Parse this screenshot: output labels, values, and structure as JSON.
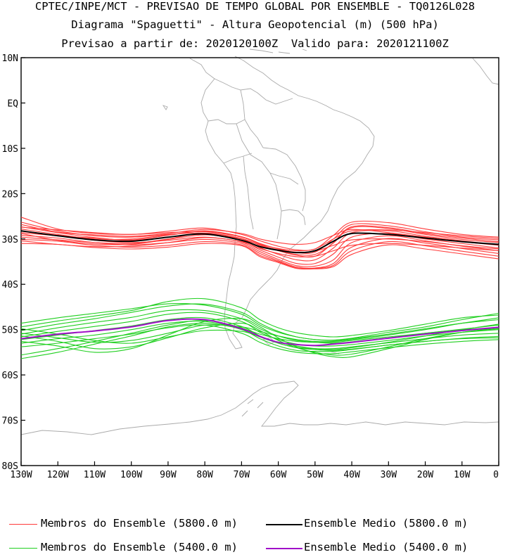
{
  "titles": {
    "line1": "CPTEC/INPE/MCT - PREVISAO DE TEMPO GLOBAL POR ENSEMBLE - TQ0126L028",
    "line2": "Diagrama \"Spaguetti\" - Altura Geopotencial (m) (500 hPa)",
    "line3": "Previsao a partir de: 2020120100Z  Valido para: 2020121100Z"
  },
  "axes": {
    "lat_labels": [
      "10N",
      "EQ",
      "10S",
      "20S",
      "30S",
      "40S",
      "50S",
      "60S",
      "70S",
      "80S"
    ],
    "lat_values": [
      10,
      0,
      -10,
      -20,
      -30,
      -40,
      -50,
      -60,
      -70,
      -80
    ],
    "lon_labels": [
      "130W",
      "120W",
      "110W",
      "100W",
      "90W",
      "80W",
      "70W",
      "60W",
      "50W",
      "40W",
      "30W",
      "20W",
      "10W",
      "0"
    ],
    "lon_values": [
      -130,
      -120,
      -110,
      -100,
      -90,
      -80,
      -70,
      -60,
      -50,
      -40,
      -30,
      -20,
      -10,
      0
    ]
  },
  "colors": {
    "member_5800": "#ff3b3b",
    "mean_5800": "#000000",
    "member_5400": "#1fcf1f",
    "mean_5400": "#a010c8",
    "coast": "#aaaaaa"
  },
  "legend": {
    "members_5800": "Membros do Ensemble (5800.0 m)",
    "mean_5800": "Ensemble Medio (5800.0 m)",
    "members_5400": "Membros do Ensemble (5400.0 m)",
    "mean_5400": "Ensemble Medio (5400.0 m)"
  },
  "chart_data": {
    "type": "line",
    "x": [
      -130,
      -120,
      -110,
      -100,
      -90,
      -80,
      -70,
      -65,
      -60,
      -55,
      -50,
      -45,
      -40,
      -30,
      -20,
      -10,
      0
    ],
    "series": [
      {
        "name": "Ensemble Medio (5800.0 m)",
        "values": [
          -28.2,
          -29.3,
          -30.2,
          -30.5,
          -29.6,
          -28.9,
          -30.3,
          -31.7,
          -32.5,
          -33.0,
          -32.6,
          -30.5,
          -28.8,
          -29.0,
          -29.8,
          -30.6,
          -31.2
        ]
      },
      {
        "name": "Ensemble Medio (5400.0 m)",
        "values": [
          -52.0,
          -51.0,
          -50.3,
          -49.4,
          -48.0,
          -47.8,
          -49.8,
          -51.5,
          -52.8,
          -53.3,
          -53.5,
          -53.2,
          -52.8,
          -51.9,
          -51.0,
          -50.2,
          -49.5
        ]
      }
    ],
    "members_5800": [
      [
        -25.2,
        -27.8,
        -28.8,
        -29.0,
        -28.6,
        -28.4,
        -29.6,
        -31.2,
        -32.6,
        -33.6,
        -33.8,
        -30.8,
        -27.3,
        -27.5,
        -28.8,
        -29.8,
        -30.6
      ],
      [
        -26.3,
        -28.2,
        -29.3,
        -29.6,
        -29.0,
        -28.7,
        -30.0,
        -31.9,
        -33.4,
        -34.6,
        -34.6,
        -32.0,
        -28.6,
        -28.2,
        -29.4,
        -30.4,
        -31.3
      ],
      [
        -27.3,
        -28.6,
        -29.7,
        -30.3,
        -29.6,
        -29.0,
        -30.4,
        -32.4,
        -34.0,
        -35.4,
        -35.4,
        -33.3,
        -29.6,
        -28.8,
        -30.0,
        -31.0,
        -32.0
      ],
      [
        -28.2,
        -29.2,
        -30.3,
        -30.8,
        -30.3,
        -29.6,
        -30.7,
        -32.8,
        -34.5,
        -35.9,
        -36.0,
        -34.6,
        -30.8,
        -29.3,
        -30.4,
        -31.6,
        -32.6
      ],
      [
        -29.2,
        -29.8,
        -30.8,
        -31.3,
        -30.8,
        -30.1,
        -31.0,
        -33.2,
        -34.8,
        -36.2,
        -36.4,
        -35.4,
        -31.8,
        -29.9,
        -30.9,
        -32.1,
        -33.2
      ],
      [
        -30.1,
        -30.5,
        -31.4,
        -31.8,
        -31.4,
        -30.6,
        -31.3,
        -33.6,
        -35.0,
        -36.4,
        -36.5,
        -35.8,
        -32.6,
        -30.6,
        -31.5,
        -32.7,
        -33.8
      ],
      [
        -31.0,
        -31.2,
        -31.9,
        -32.2,
        -31.8,
        -31.0,
        -31.5,
        -33.9,
        -35.2,
        -36.5,
        -36.6,
        -36.1,
        -33.4,
        -31.3,
        -32.2,
        -33.3,
        -34.4
      ],
      [
        -27.4,
        -28.0,
        -28.6,
        -29.0,
        -28.3,
        -27.6,
        -29.0,
        -30.4,
        -31.6,
        -32.4,
        -32.2,
        -29.2,
        -26.3,
        -26.4,
        -27.8,
        -29.0,
        -29.6
      ],
      [
        -28.6,
        -29.3,
        -29.8,
        -30.2,
        -29.2,
        -28.2,
        -29.5,
        -31.0,
        -32.2,
        -33.0,
        -32.9,
        -30.0,
        -26.8,
        -27.1,
        -28.4,
        -29.6,
        -30.2
      ],
      [
        -29.6,
        -30.2,
        -30.8,
        -31.0,
        -30.0,
        -28.7,
        -29.9,
        -31.4,
        -32.6,
        -33.4,
        -33.4,
        -30.9,
        -27.5,
        -27.7,
        -29.0,
        -30.1,
        -30.8
      ],
      [
        -26.8,
        -28.5,
        -29.1,
        -29.4,
        -28.8,
        -27.9,
        -28.8,
        -30.0,
        -30.8,
        -31.2,
        -30.8,
        -29.2,
        -27.9,
        -28.6,
        -29.6,
        -30.6,
        -31.4
      ],
      [
        -28.8,
        -30.3,
        -31.1,
        -31.2,
        -30.1,
        -29.1,
        -30.0,
        -31.4,
        -32.4,
        -32.9,
        -32.7,
        -31.4,
        -30.2,
        -30.0,
        -30.6,
        -31.5,
        -32.2
      ],
      [
        -30.4,
        -31.2,
        -31.7,
        -31.6,
        -30.8,
        -29.7,
        -30.6,
        -32.1,
        -33.2,
        -33.9,
        -33.8,
        -32.6,
        -31.4,
        -31.0,
        -31.4,
        -32.0,
        -32.6
      ],
      [
        -27.8,
        -29.0,
        -30.0,
        -30.0,
        -29.1,
        -28.3,
        -29.5,
        -31.1,
        -32.1,
        -32.6,
        -32.2,
        -30.0,
        -28.2,
        -28.0,
        -28.6,
        -29.3,
        -29.9
      ]
    ],
    "members_5400": [
      [
        -48.6,
        -47.4,
        -46.4,
        -45.4,
        -44.3,
        -44.6,
        -46.6,
        -49.0,
        -50.6,
        -51.6,
        -52.2,
        -52.3,
        -51.9,
        -50.6,
        -49.4,
        -47.8,
        -46.4
      ],
      [
        -49.4,
        -48.1,
        -47.0,
        -45.8,
        -43.8,
        -43.2,
        -45.2,
        -47.8,
        -49.6,
        -50.7,
        -51.3,
        -51.6,
        -51.3,
        -50.2,
        -48.8,
        -47.4,
        -46.8
      ],
      [
        -50.2,
        -48.8,
        -47.6,
        -46.2,
        -44.8,
        -44.4,
        -46.2,
        -48.6,
        -50.4,
        -51.6,
        -52.2,
        -52.4,
        -52.0,
        -51.0,
        -49.8,
        -48.6,
        -47.8
      ],
      [
        -51.0,
        -49.6,
        -48.4,
        -47.3,
        -45.8,
        -45.8,
        -47.6,
        -49.8,
        -51.4,
        -52.4,
        -52.8,
        -53.0,
        -52.7,
        -51.8,
        -50.8,
        -49.9,
        -49.0
      ],
      [
        -51.6,
        -50.4,
        -49.3,
        -48.2,
        -46.6,
        -46.3,
        -48.2,
        -50.6,
        -52.2,
        -53.2,
        -53.6,
        -53.6,
        -53.3,
        -52.4,
        -51.4,
        -50.6,
        -50.0
      ],
      [
        -52.2,
        -51.2,
        -50.2,
        -49.2,
        -47.8,
        -47.4,
        -49.3,
        -51.4,
        -53.0,
        -53.9,
        -54.2,
        -54.2,
        -53.8,
        -52.9,
        -52.0,
        -51.2,
        -50.8
      ],
      [
        -53.0,
        -52.0,
        -51.2,
        -50.0,
        -48.6,
        -48.2,
        -50.0,
        -52.0,
        -53.6,
        -54.6,
        -54.8,
        -54.8,
        -54.4,
        -53.4,
        -52.6,
        -51.9,
        -51.5
      ],
      [
        -53.8,
        -53.0,
        -52.0,
        -51.0,
        -49.6,
        -49.0,
        -50.8,
        -52.8,
        -54.2,
        -55.0,
        -55.3,
        -55.3,
        -54.9,
        -54.0,
        -53.2,
        -52.6,
        -52.2
      ],
      [
        -55.6,
        -54.2,
        -52.6,
        -50.8,
        -49.0,
        -48.0,
        -49.6,
        -51.6,
        -53.0,
        -54.0,
        -54.4,
        -54.6,
        -54.3,
        -53.4,
        -52.6,
        -52.0,
        -51.8
      ],
      [
        -56.4,
        -55.0,
        -53.2,
        -51.4,
        -49.4,
        -48.6,
        -49.8,
        -51.0,
        -52.0,
        -52.6,
        -52.8,
        -52.8,
        -52.4,
        -51.6,
        -50.8,
        -50.0,
        -49.6
      ],
      [
        -50.8,
        -51.8,
        -52.8,
        -52.4,
        -50.8,
        -49.0,
        -49.4,
        -50.4,
        -51.4,
        -52.2,
        -52.6,
        -52.6,
        -52.2,
        -51.2,
        -50.0,
        -48.6,
        -47.4
      ],
      [
        -49.8,
        -51.0,
        -52.4,
        -53.0,
        -51.6,
        -50.2,
        -50.4,
        -51.6,
        -52.8,
        -53.6,
        -54.2,
        -54.4,
        -54.0,
        -52.8,
        -51.4,
        -50.0,
        -48.8
      ],
      [
        -51.4,
        -52.6,
        -54.2,
        -53.8,
        -51.8,
        -49.6,
        -48.6,
        -50.2,
        -52.4,
        -54.0,
        -55.0,
        -55.6,
        -55.4,
        -53.8,
        -52.0,
        -50.6,
        -49.8
      ],
      [
        -52.6,
        -53.6,
        -55.0,
        -54.2,
        -51.2,
        -48.2,
        -47.6,
        -49.4,
        -51.8,
        -53.8,
        -55.2,
        -56.0,
        -56.0,
        -54.2,
        -52.2,
        -50.6,
        -49.6
      ]
    ],
    "xlim": [
      -130,
      0
    ],
    "ylim": [
      -80,
      10
    ]
  }
}
